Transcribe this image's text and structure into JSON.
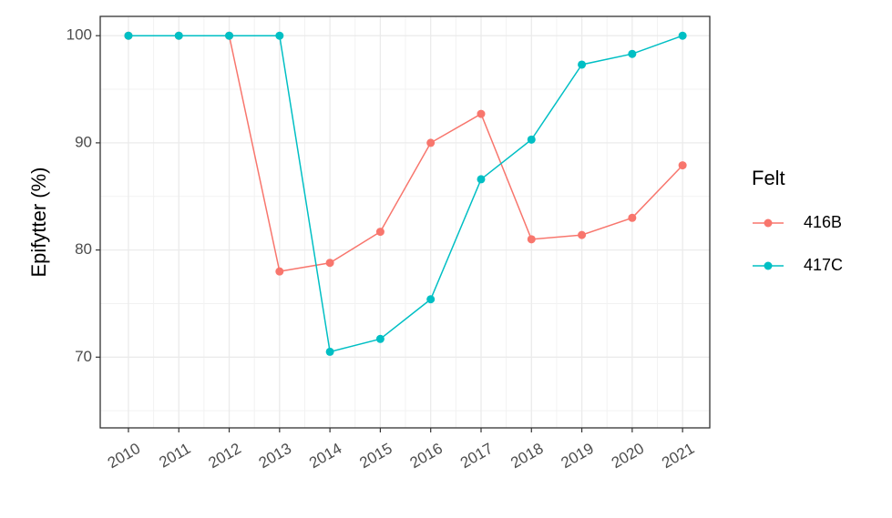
{
  "chart_data": {
    "type": "line",
    "y_label": "Epifytter (%)",
    "legend_title": "Felt",
    "x": [
      2010,
      2011,
      2012,
      2013,
      2014,
      2015,
      2016,
      2017,
      2018,
      2019,
      2020,
      2021
    ],
    "series": [
      {
        "name": "416B",
        "color": "#F8766D",
        "values": [
          100,
          100,
          100,
          78.0,
          78.8,
          81.7,
          90.0,
          92.7,
          81.0,
          81.4,
          83.0,
          87.9
        ]
      },
      {
        "name": "417C",
        "color": "#00BFC4",
        "values": [
          100,
          100,
          100,
          100,
          70.5,
          71.7,
          75.4,
          86.6,
          90.3,
          97.3,
          98.3,
          100
        ]
      }
    ],
    "xlim": [
      2009.44,
      2021.54
    ],
    "ylim": [
      63.4,
      101.8
    ],
    "xticks": [
      2010,
      2011,
      2012,
      2013,
      2014,
      2015,
      2016,
      2017,
      2018,
      2019,
      2020,
      2021
    ],
    "yticks": [
      70,
      80,
      90,
      100
    ],
    "grid": true,
    "legend_position": "right"
  }
}
